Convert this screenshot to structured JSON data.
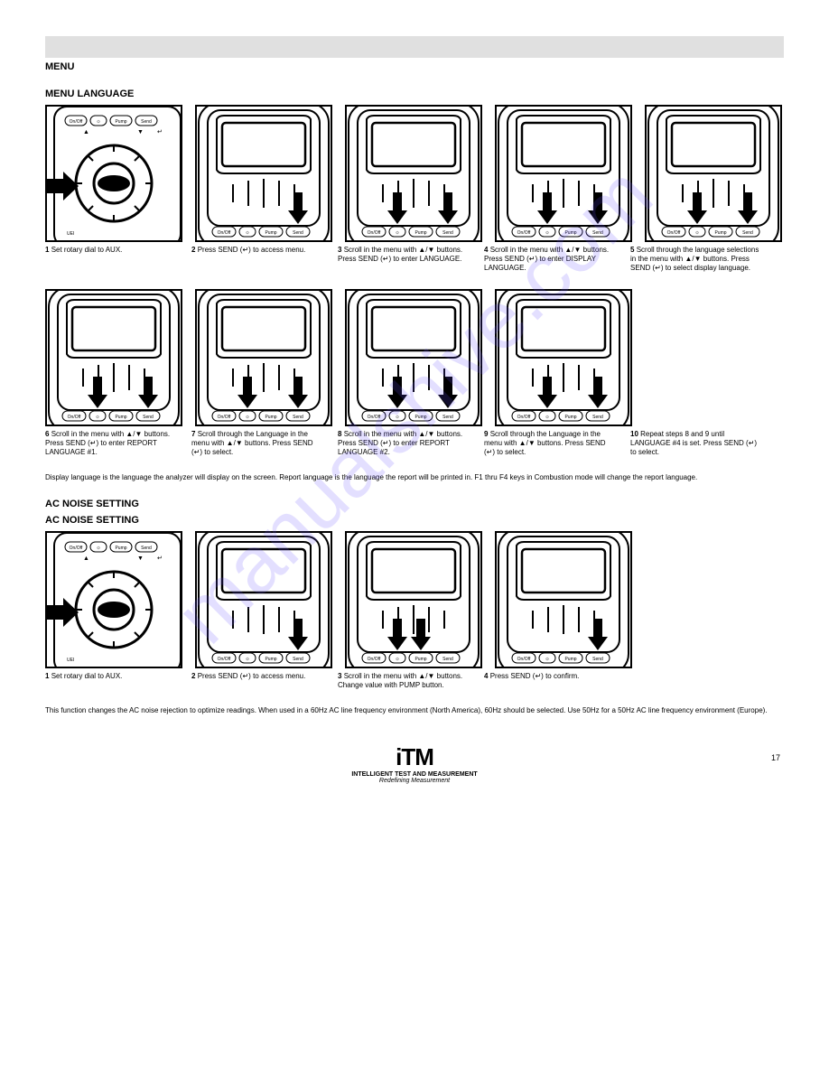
{
  "page": {
    "header_label": "MENU",
    "section1_title": "MENU LANGUAGE",
    "section2_heading": "AC NOISE SETTING",
    "section2_title": "AC NOISE SETTING",
    "watermark": "manualshive.com",
    "page_number": "17"
  },
  "footer": {
    "logo": "iTM",
    "company": "INTELLIGENT TEST AND MEASUREMENT",
    "tagline": "Redefining Measurement"
  },
  "buttons": {
    "onoff": "On/Off",
    "light": "☼",
    "pump": "Pump",
    "send": "Send"
  },
  "arrows_buttons": {
    "up": "▲",
    "down": "▼",
    "enter": "↵"
  },
  "row1": {
    "s1": {
      "num": "1",
      "text": "Set rotary dial to AUX."
    },
    "s2": {
      "num": "2",
      "text": "Press SEND (↵) to access menu."
    },
    "s3": {
      "num": "3",
      "text": "Scroll in the menu with ▲/▼ buttons. Press SEND (↵) to enter LANGUAGE."
    },
    "s4": {
      "num": "4",
      "text": "Scroll in the menu with ▲/▼ buttons. Press SEND (↵) to enter DISPLAY LANGUAGE."
    },
    "s5": {
      "num": "5",
      "text": "Scroll through the language selections in the menu with ▲/▼ buttons. Press SEND (↵) to select display language."
    }
  },
  "row2": {
    "s6": {
      "num": "6",
      "text": "Scroll in the menu with ▲/▼ buttons. Press SEND (↵) to enter REPORT LANGUAGE #1."
    },
    "s7": {
      "num": "7",
      "text": "Scroll through the Language in the menu with ▲/▼ buttons. Press SEND (↵) to select."
    },
    "s8": {
      "num": "8",
      "text": "Scroll in the menu with ▲/▼ buttons. Press SEND (↵) to enter REPORT LANGUAGE #2."
    },
    "s9": {
      "num": "9",
      "text": "Scroll through the Language in the menu with ▲/▼ buttons. Press SEND (↵) to select."
    },
    "s10": {
      "num": "10",
      "text": "Repeat steps 8 and 9 until LANGUAGE #4 is set. Press SEND (↵) to select."
    }
  },
  "note1": "Display language is the language the analyzer will display on the screen. Report language is the language the report will be printed in. F1 thru F4 keys in Combustion mode will change the report language.",
  "row3": {
    "s1": {
      "num": "1",
      "text": "Set rotary dial to AUX."
    },
    "s2": {
      "num": "2",
      "text": "Press SEND (↵) to access menu."
    },
    "s3": {
      "num": "3",
      "text": "Scroll in the menu with ▲/▼ buttons. Change value with PUMP button."
    },
    "s4": {
      "num": "4",
      "text": "Press SEND (↵) to confirm."
    }
  },
  "note2": "This function changes the AC noise rejection to optimize readings. When used in a 60Hz AC line frequency environment (North America), 60Hz should be selected. Use 50Hz for a 50Hz AC line frequency environment (Europe).",
  "colors": {
    "border": "#000000",
    "gray_bar": "#e0e0e0",
    "watermark": "rgba(100,80,255,0.18)"
  }
}
